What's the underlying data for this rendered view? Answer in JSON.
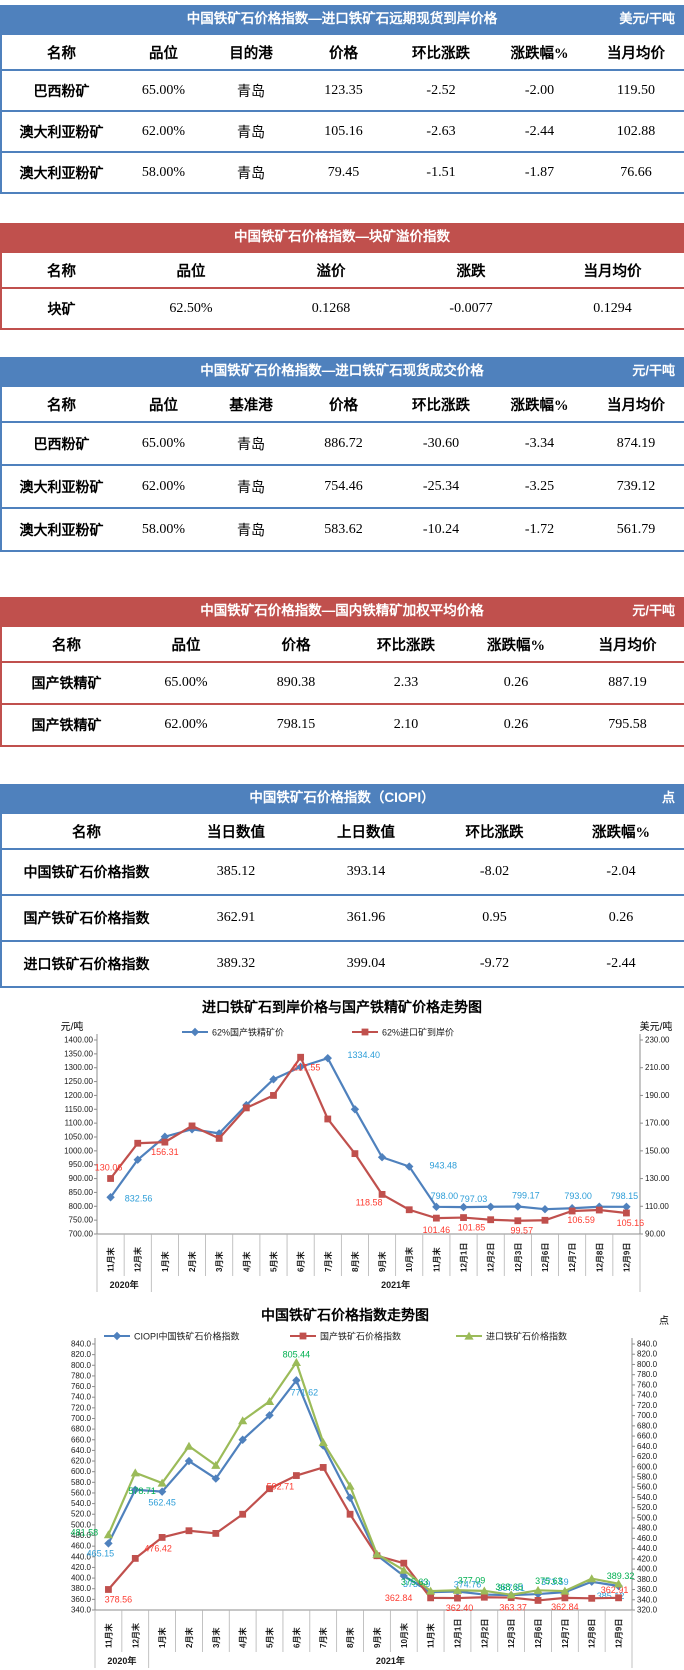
{
  "tables": [
    {
      "title": "中国铁矿石价格指数—进口铁矿石远期现货到岸价格",
      "unit": "美元/干吨",
      "headers": [
        "名称",
        "品位",
        "目的港",
        "价格",
        "环比涨跌",
        "涨跌幅%",
        "当月均价"
      ],
      "rows": [
        [
          "巴西粉矿",
          "65.00%",
          "青岛",
          "123.35",
          "-2.52",
          "-2.00",
          "119.50"
        ],
        [
          "澳大利亚粉矿",
          "62.00%",
          "青岛",
          "105.16",
          "-2.63",
          "-2.44",
          "102.88"
        ],
        [
          "澳大利亚粉矿",
          "58.00%",
          "青岛",
          "79.45",
          "-1.51",
          "-1.87",
          "76.66"
        ]
      ]
    },
    {
      "title": "中国铁矿石价格指数—块矿溢价指数",
      "unit": "",
      "headers": [
        "名称",
        "品位",
        "溢价",
        "涨跌",
        "当月均价"
      ],
      "rows": [
        [
          "块矿",
          "62.50%",
          "0.1268",
          "-0.0077",
          "0.1294"
        ]
      ]
    },
    {
      "title": "中国铁矿石价格指数—进口铁矿石现货成交价格",
      "unit": "元/干吨",
      "headers": [
        "名称",
        "品位",
        "基准港",
        "价格",
        "环比涨跌",
        "涨跌幅%",
        "当月均价"
      ],
      "rows": [
        [
          "巴西粉矿",
          "65.00%",
          "青岛",
          "886.72",
          "-30.60",
          "-3.34",
          "874.19"
        ],
        [
          "澳大利亚粉矿",
          "62.00%",
          "青岛",
          "754.46",
          "-25.34",
          "-3.25",
          "739.12"
        ],
        [
          "澳大利亚粉矿",
          "58.00%",
          "青岛",
          "583.62",
          "-10.24",
          "-1.72",
          "561.79"
        ]
      ]
    },
    {
      "title": "中国铁矿石价格指数—国内铁精矿加权平均价格",
      "unit": "元/干吨",
      "headers": [
        "名称",
        "品位",
        "价格",
        "环比涨跌",
        "涨跌幅%",
        "当月均价"
      ],
      "rows": [
        [
          "国产铁精矿",
          "65.00%",
          "890.38",
          "2.33",
          "0.26",
          "887.19"
        ],
        [
          "国产铁精矿",
          "62.00%",
          "798.15",
          "2.10",
          "0.26",
          "795.58"
        ]
      ]
    },
    {
      "title": "中国铁矿石价格指数（CIOPI）",
      "unit": "点",
      "headers": [
        "名称",
        "当日数值",
        "上日数值",
        "环比涨跌",
        "涨跌幅%"
      ],
      "rows": [
        [
          "中国铁矿石价格指数",
          "385.12",
          "393.14",
          "-8.02",
          "-2.04"
        ],
        [
          "国产铁矿石价格指数",
          "362.91",
          "361.96",
          "0.95",
          "0.26"
        ],
        [
          "进口铁矿石价格指数",
          "389.32",
          "399.04",
          "-9.72",
          "-2.44"
        ]
      ]
    }
  ],
  "chart_data": [
    {
      "type": "line",
      "title": "进口铁矿石到岸价格与国产铁精矿价格走势图",
      "legend_position": "top",
      "grid": false,
      "left_axis": {
        "label": "元/吨",
        "min": 700,
        "max": 1400,
        "step": 50,
        "decimals": 2
      },
      "right_axis": {
        "label": "美元/吨",
        "min": 90,
        "max": 230,
        "step": 20,
        "decimals": 2
      },
      "categories": [
        "11月末",
        "12月末",
        "1月末",
        "2月末",
        "3月末",
        "4月末",
        "5月末",
        "6月末",
        "7月末",
        "8月末",
        "9月末",
        "10月末",
        "11月末",
        "12月1日",
        "12月2日",
        "12月3日",
        "12月6日",
        "12月7日",
        "12月8日",
        "12月9日"
      ],
      "year_groups": [
        {
          "label": "2020年",
          "span": 2
        },
        {
          "label": "2021年",
          "span": 18
        }
      ],
      "series": [
        {
          "name": "62%国产铁精矿价",
          "axis": "left",
          "marker": "diamond",
          "color": "#4f81bd",
          "label_color": "#2e9ed8",
          "values": [
            832.56,
            968,
            1051,
            1078,
            1063,
            1165,
            1258,
            1303,
            1334.4,
            1150,
            977,
            943.48,
            798.0,
            797.03,
            798.2,
            799.17,
            789.5,
            793.0,
            798.3,
            798.15
          ],
          "labels": [
            [
              0,
              28,
              4
            ],
            [
              8,
              36,
              0
            ],
            [
              11,
              34,
              2
            ],
            [
              12,
              8,
              -8
            ],
            [
              13,
              10,
              -5
            ],
            [
              15,
              8,
              -8
            ],
            [
              17,
              6,
              -9
            ],
            [
              19,
              -2,
              -8
            ]
          ]
        },
        {
          "name": "62%进口矿到岸价",
          "axis": "right",
          "marker": "square",
          "color": "#c0504d",
          "label_color": "#fe3b30",
          "values": [
            130.06,
            155.5,
            156.31,
            168.0,
            159.0,
            181.0,
            190.0,
            217.55,
            173.0,
            148.0,
            118.58,
            107.5,
            101.46,
            101.85,
            100.3,
            99.57,
            99.9,
            106.59,
            107.3,
            105.16
          ],
          "labels": [
            [
              0,
              -2,
              -8
            ],
            [
              2,
              0,
              13
            ],
            [
              7,
              6,
              13
            ],
            [
              10,
              -13,
              11
            ],
            [
              12,
              0,
              15
            ],
            [
              13,
              8,
              13
            ],
            [
              15,
              4,
              13
            ],
            [
              17,
              9,
              12
            ],
            [
              19,
              4,
              13
            ]
          ]
        }
      ]
    },
    {
      "type": "line",
      "title": "中国铁矿石价格指数走势图",
      "unit": "点",
      "legend_position": "top",
      "grid": false,
      "left_axis": {
        "min": 340,
        "max": 840,
        "step": 20,
        "decimals": 1
      },
      "right_axis": {
        "min": 320,
        "max": 840,
        "step": 20,
        "decimals": 1
      },
      "categories": [
        "11月末",
        "12月末",
        "1月末",
        "2月末",
        "3月末",
        "4月末",
        "5月末",
        "6月末",
        "7月末",
        "8月末",
        "9月末",
        "10月末",
        "11月末",
        "12月1日",
        "12月2日",
        "12月3日",
        "12月6日",
        "12月7日",
        "12月8日",
        "12月9日"
      ],
      "year_groups": [
        {
          "label": "2020年",
          "span": 2
        },
        {
          "label": "2021年",
          "span": 18
        }
      ],
      "series": [
        {
          "name": "CIOPI中国铁矿石价格指数",
          "axis": "left",
          "marker": "diamond",
          "color": "#4f81bd",
          "label_color": "#2e9ed8",
          "values": [
            465.15,
            566,
            562.45,
            620,
            587,
            660,
            706,
            771.62,
            649,
            551,
            443,
            404,
            373.59,
            374.76,
            369,
            367.81,
            370,
            373.59,
            393.14,
            385.12
          ],
          "labels": [
            [
              0,
              -8,
              13
            ],
            [
              2,
              0,
              14
            ],
            [
              7,
              8,
              15
            ],
            [
              12,
              -14,
              -5
            ],
            [
              13,
              10,
              -4
            ],
            [
              15,
              0,
              -4
            ],
            [
              17,
              -10,
              -7
            ],
            [
              19,
              -8,
              13
            ]
          ]
        },
        {
          "name": "国产铁矿石价格指数",
          "axis": "left",
          "marker": "square",
          "color": "#c0504d",
          "label_color": "#fe3b30",
          "values": [
            378.56,
            437,
            476.42,
            489,
            484,
            520,
            568,
            592.71,
            608,
            520,
            442,
            428,
            362.84,
            362.4,
            364,
            363.37,
            358,
            362.84,
            361.96,
            362.91
          ],
          "labels": [
            [
              0,
              10,
              13
            ],
            [
              2,
              -4,
              14
            ],
            [
              7,
              -16,
              14
            ],
            [
              12,
              -32,
              3
            ],
            [
              13,
              2,
              13
            ],
            [
              15,
              2,
              13
            ],
            [
              17,
              0,
              12
            ],
            [
              19,
              -4,
              -5
            ]
          ]
        },
        {
          "name": "进口铁矿石价格指数",
          "axis": "left",
          "marker": "triangle",
          "color": "#9bbb59",
          "label_color": "#00b050",
          "values": [
            481.58,
            598,
            578.71,
            648,
            612,
            696,
            732,
            805.44,
            655,
            573,
            445,
            415,
            375.63,
            377.09,
            376,
            368.65,
            377,
            375.63,
            399.04,
            389.32
          ],
          "labels": [
            [
              0,
              -24,
              1
            ],
            [
              2,
              -20,
              11
            ],
            [
              7,
              0,
              -5
            ],
            [
              12,
              -16,
              -6
            ],
            [
              13,
              14,
              -7
            ],
            [
              15,
              -2,
              -5
            ],
            [
              17,
              -16,
              -7
            ],
            [
              19,
              2,
              -5
            ]
          ]
        }
      ]
    }
  ]
}
